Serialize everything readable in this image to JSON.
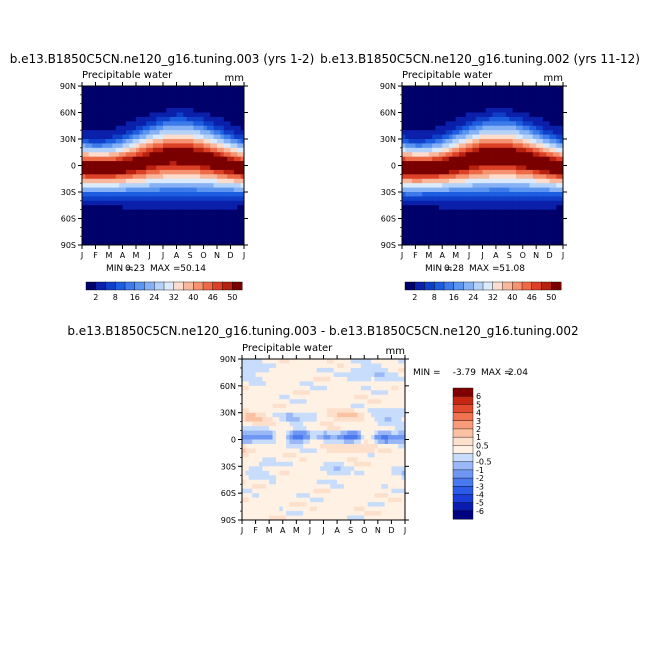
{
  "colors": {
    "abs_levels": [
      "#00006b",
      "#0a1faa",
      "#0f3ec8",
      "#1d5de0",
      "#3d7aea",
      "#5b95f0",
      "#86b2f5",
      "#b5d3f9",
      "#dcebfb",
      "#fbdccd",
      "#f8b89d",
      "#f59270",
      "#ee6a46",
      "#dc4027",
      "#b8200f",
      "#7a0000"
    ],
    "diff_levels": [
      "#000080",
      "#0a1cb0",
      "#1a3dd8",
      "#2c5ae8",
      "#4a78ef",
      "#6f96f3",
      "#9ab8f7",
      "#c8dcfb",
      "#fff1e4",
      "#fde0cc",
      "#fbc1a4",
      "#f79b7a",
      "#f07350",
      "#e24a2e",
      "#c42612",
      "#7f0000"
    ]
  },
  "months": [
    "J",
    "F",
    "M",
    "A",
    "M",
    "J",
    "J",
    "A",
    "S",
    "O",
    "N",
    "D",
    "J"
  ],
  "lat_labels": [
    "90N",
    "60N",
    "30N",
    "0",
    "30S",
    "60S",
    "90S"
  ],
  "chart_data": [
    {
      "type": "heatmap",
      "title": "b.e13.B1850C5CN.ne120_g16.tuning.003 (yrs 1-2)",
      "subtitle": "Precipitable water",
      "units": "mm",
      "min_label": "MIN =",
      "min": "0.23",
      "max_label": "MAX =",
      "max": "50.14",
      "colorbar_labels": [
        "2",
        "8",
        "16",
        "24",
        "32",
        "40",
        "46",
        "50"
      ],
      "levels": [
        2,
        4,
        6,
        8,
        10,
        12,
        16,
        20,
        24,
        28,
        32,
        36,
        40,
        43,
        46,
        48,
        50
      ],
      "field": "abs",
      "peak": 50,
      "min_value": 0.23
    },
    {
      "type": "heatmap",
      "title": "b.e13.B1850C5CN.ne120_g16.tuning.002 (yrs 11-12)",
      "subtitle": "Precipitable water",
      "units": "mm",
      "min_label": "MIN =",
      "min": "0.28",
      "max_label": "MAX =",
      "max": "51.08",
      "colorbar_labels": [
        "2",
        "8",
        "16",
        "24",
        "32",
        "40",
        "46",
        "50"
      ],
      "levels": [
        2,
        4,
        6,
        8,
        10,
        12,
        16,
        20,
        24,
        28,
        32,
        36,
        40,
        43,
        46,
        48,
        50
      ],
      "field": "abs",
      "peak": 51,
      "min_value": 0.28
    },
    {
      "type": "heatmap",
      "title": "b.e13.B1850C5CN.ne120_g16.tuning.003 - b.e13.B1850C5CN.ne120_g16.tuning.002",
      "subtitle": "Precipitable water",
      "units": "mm",
      "min_label": "MIN =",
      "min": "-3.79",
      "max_label": "MAX =",
      "max": "2.04",
      "colorbar_labels": [
        "6",
        "5",
        "4",
        "3",
        "2",
        "1",
        "0.5",
        "0",
        "-0.5",
        "-1",
        "-2",
        "-3",
        "-4",
        "-5",
        "-6"
      ],
      "levels": [
        -6,
        -5,
        -4,
        -3,
        -2,
        -1,
        -0.5,
        0,
        0.5,
        1,
        2,
        3,
        4,
        5,
        6
      ],
      "field": "diff"
    }
  ]
}
